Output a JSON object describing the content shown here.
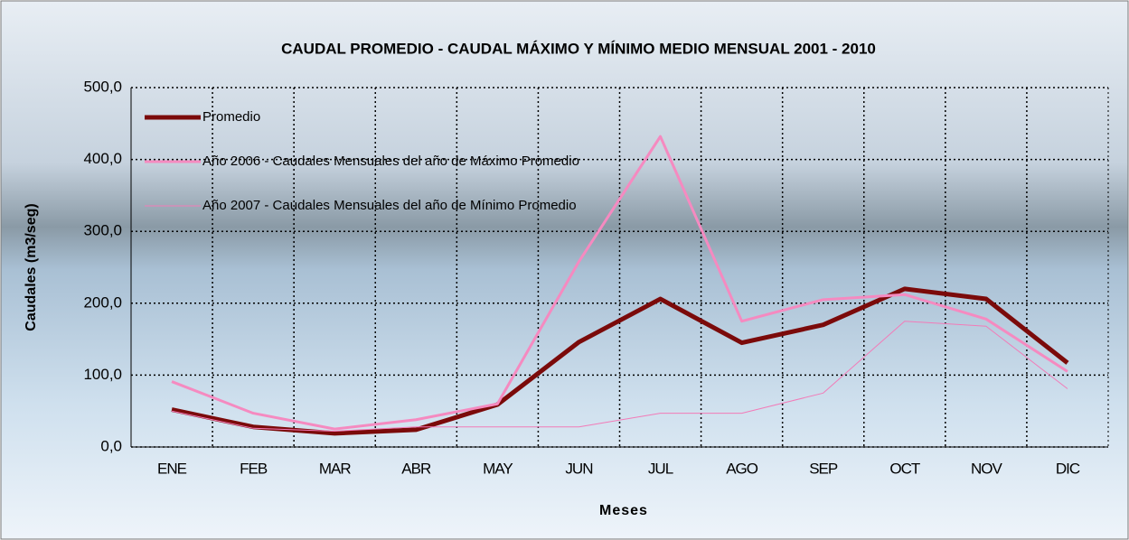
{
  "chart_data": {
    "type": "line",
    "title": "CAUDAL PROMEDIO - CAUDAL MÁXIMO Y MÍNIMO MEDIO MENSUAL 2001 - 2010",
    "x_label": "Meses",
    "y_label": "Caudales (m3/seg)",
    "categories": [
      "ENE",
      "FEB",
      "MAR",
      "ABR",
      "MAY",
      "JUN",
      "JUL",
      "AGO",
      "SEP",
      "OCT",
      "NOV",
      "DIC"
    ],
    "series": [
      {
        "name": "Promedio",
        "color": "#7b0a0a",
        "width": 5,
        "values": [
          52,
          28,
          19,
          24,
          59,
          146,
          206,
          145,
          170,
          220,
          206,
          117
        ]
      },
      {
        "name": "Año 2006 - Caudales Mensuales del año de Máximo Promedio",
        "color": "#f58ac0",
        "width": 3,
        "values": [
          91,
          47,
          25,
          38,
          60,
          258,
          432,
          175,
          205,
          212,
          178,
          105
        ]
      },
      {
        "name": "Año 2007 - Caudales Mensuales del año de Mínimo Promedio",
        "color": "#f27bb8",
        "width": 1,
        "values": [
          50,
          26,
          22,
          28,
          28,
          28,
          47,
          47,
          75,
          175,
          168,
          81
        ]
      }
    ],
    "ylim": [
      0,
      500
    ],
    "yticks": [
      {
        "value": 0,
        "label": "0,0"
      },
      {
        "value": 100,
        "label": "100,0"
      },
      {
        "value": 200,
        "label": "200,0"
      },
      {
        "value": 300,
        "label": "300,0"
      },
      {
        "value": 400,
        "label": "400,0"
      },
      {
        "value": 500,
        "label": "500,0"
      }
    ],
    "grid": true,
    "legend": "top-left"
  }
}
